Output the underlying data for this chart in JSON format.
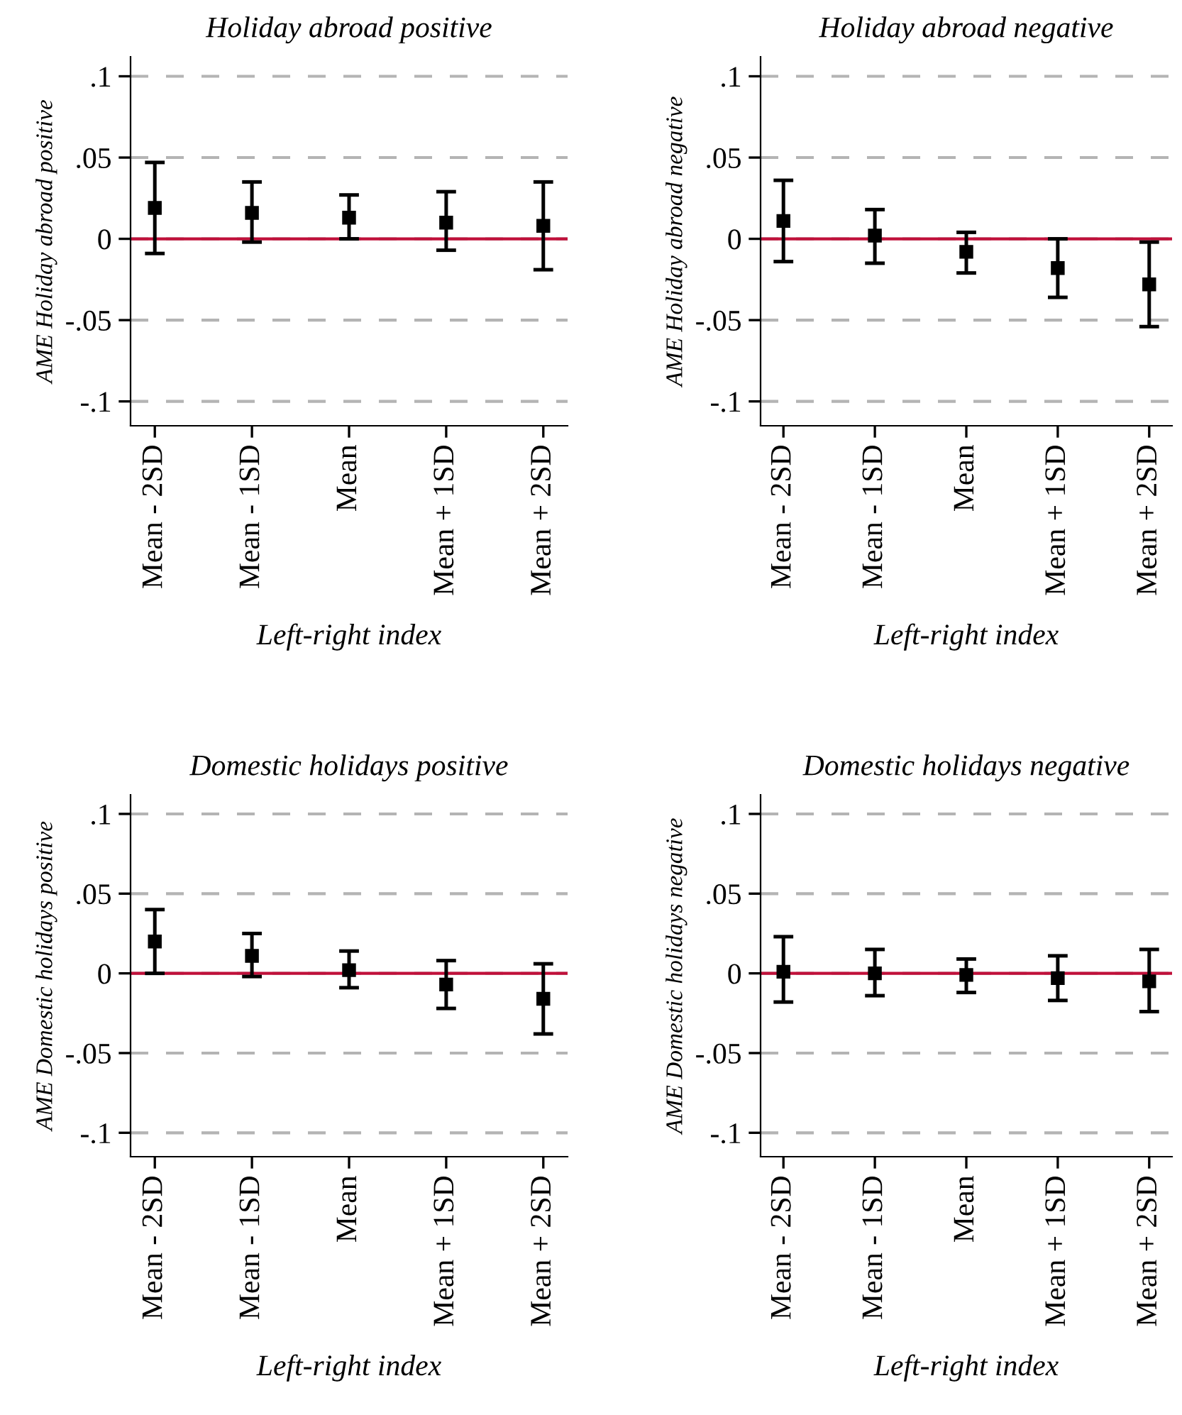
{
  "chart_data": [
    {
      "type": "scatter",
      "title": "Holiday abroad positive",
      "xlabel": "Left-right index",
      "ylabel": "AME Holiday abroad positive",
      "categories": [
        "Mean - 2SD",
        "Mean - 1SD",
        "Mean",
        "Mean + 1SD",
        "Mean + 2SD"
      ],
      "series": [
        {
          "color": "#000000",
          "values": [
            0.019,
            0.016,
            0.013,
            0.01,
            0.008
          ],
          "errors": [
            [
              -0.009,
              0.047
            ],
            [
              -0.002,
              0.035
            ],
            [
              0.0,
              0.027
            ],
            [
              -0.007,
              0.029
            ],
            [
              -0.019,
              0.035
            ]
          ]
        }
      ],
      "ylim": [
        -0.115,
        0.112
      ],
      "yticks": [
        {
          "value": -0.1,
          "label": "-.1"
        },
        {
          "value": -0.05,
          "label": "-.05"
        },
        0,
        {
          "value": 0.05,
          "label": ".05"
        },
        {
          "value": 0.1,
          "label": ".1"
        }
      ],
      "ref_lines": [
        {
          "axis": "y",
          "value": 0,
          "color": "#c0103a"
        }
      ],
      "grid": "y",
      "marker": "square",
      "legend": false
    },
    {
      "type": "scatter",
      "title": "Holiday abroad negative",
      "xlabel": "Left-right index",
      "ylabel": "AME Holiday abroad negative",
      "categories": [
        "Mean - 2SD",
        "Mean - 1SD",
        "Mean",
        "Mean + 1SD",
        "Mean + 2SD"
      ],
      "series": [
        {
          "color": "#000000",
          "values": [
            0.011,
            0.002,
            -0.008,
            -0.018,
            -0.028
          ],
          "errors": [
            [
              -0.014,
              0.036
            ],
            [
              -0.015,
              0.018
            ],
            [
              -0.021,
              0.004
            ],
            [
              -0.036,
              0.0
            ],
            [
              -0.054,
              -0.002
            ]
          ]
        }
      ],
      "ylim": [
        -0.115,
        0.112
      ],
      "yticks": [
        {
          "value": -0.1,
          "label": "-.1"
        },
        {
          "value": -0.05,
          "label": "-.05"
        },
        0,
        {
          "value": 0.05,
          "label": ".05"
        },
        {
          "value": 0.1,
          "label": ".1"
        }
      ],
      "ref_lines": [
        {
          "axis": "y",
          "value": 0,
          "color": "#c0103a"
        }
      ],
      "grid": "y",
      "marker": "square",
      "legend": false
    },
    {
      "type": "scatter",
      "title": "Domestic holidays positive",
      "xlabel": "Left-right index",
      "ylabel": "AME Domestic holidays positive",
      "categories": [
        "Mean - 2SD",
        "Mean - 1SD",
        "Mean",
        "Mean + 1SD",
        "Mean + 2SD"
      ],
      "series": [
        {
          "color": "#000000",
          "values": [
            0.02,
            0.011,
            0.002,
            -0.007,
            -0.016
          ],
          "errors": [
            [
              0.0,
              0.04
            ],
            [
              -0.002,
              0.025
            ],
            [
              -0.009,
              0.014
            ],
            [
              -0.022,
              0.008
            ],
            [
              -0.038,
              0.006
            ]
          ]
        }
      ],
      "ylim": [
        -0.115,
        0.112
      ],
      "yticks": [
        {
          "value": -0.1,
          "label": "-.1"
        },
        {
          "value": -0.05,
          "label": "-.05"
        },
        0,
        {
          "value": 0.05,
          "label": ".05"
        },
        {
          "value": 0.1,
          "label": ".1"
        }
      ],
      "ref_lines": [
        {
          "axis": "y",
          "value": 0,
          "color": "#c0103a"
        }
      ],
      "grid": "y",
      "marker": "square",
      "legend": false
    },
    {
      "type": "scatter",
      "title": "Domestic holidays negative",
      "xlabel": "Left-right index",
      "ylabel": "AME Domestic holidays negative",
      "categories": [
        "Mean - 2SD",
        "Mean - 1SD",
        "Mean",
        "Mean + 1SD",
        "Mean + 2SD"
      ],
      "series": [
        {
          "color": "#000000",
          "values": [
            0.001,
            0.0,
            -0.001,
            -0.003,
            -0.005
          ],
          "errors": [
            [
              -0.018,
              0.023
            ],
            [
              -0.014,
              0.015
            ],
            [
              -0.012,
              0.009
            ],
            [
              -0.017,
              0.011
            ],
            [
              -0.024,
              0.015
            ]
          ]
        }
      ],
      "ylim": [
        -0.115,
        0.112
      ],
      "yticks": [
        {
          "value": -0.1,
          "label": "-.1"
        },
        {
          "value": -0.05,
          "label": "-.05"
        },
        0,
        {
          "value": 0.05,
          "label": ".05"
        },
        {
          "value": 0.1,
          "label": ".1"
        }
      ],
      "ref_lines": [
        {
          "axis": "y",
          "value": 0,
          "color": "#c0103a"
        }
      ],
      "grid": "y",
      "marker": "square",
      "legend": false
    }
  ]
}
